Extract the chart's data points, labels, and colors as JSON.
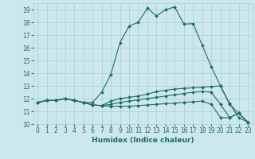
{
  "xlabel": "Humidex (Indice chaleur)",
  "ylabel": "",
  "xlim": [
    -0.5,
    23.5
  ],
  "ylim": [
    10,
    19.5
  ],
  "yticks": [
    10,
    11,
    12,
    13,
    14,
    15,
    16,
    17,
    18,
    19
  ],
  "xticks": [
    0,
    1,
    2,
    3,
    4,
    5,
    6,
    7,
    8,
    9,
    10,
    11,
    12,
    13,
    14,
    15,
    16,
    17,
    18,
    19,
    20,
    21,
    22,
    23
  ],
  "background_color": "#cde8ec",
  "grid_color": "#aacdd4",
  "line_color": "#1e6b6b",
  "lines": [
    {
      "x": [
        0,
        1,
        2,
        3,
        4,
        5,
        6,
        7,
        8,
        9,
        10,
        11,
        12,
        13,
        14,
        15,
        16,
        17,
        18,
        19,
        20,
        21,
        22,
        23
      ],
      "y": [
        11.7,
        11.85,
        11.85,
        12.0,
        11.85,
        11.7,
        11.7,
        12.5,
        13.9,
        16.4,
        17.7,
        18.0,
        19.1,
        18.5,
        19.0,
        19.2,
        17.85,
        17.9,
        16.2,
        14.5,
        13.0,
        11.6,
        10.5,
        10.15
      ]
    },
    {
      "x": [
        0,
        1,
        2,
        3,
        4,
        5,
        6,
        7,
        8,
        9,
        10,
        11,
        12,
        13,
        14,
        15,
        16,
        17,
        18,
        19,
        20,
        21,
        22,
        23
      ],
      "y": [
        11.7,
        11.85,
        11.85,
        12.0,
        11.85,
        11.7,
        11.5,
        11.45,
        11.8,
        12.0,
        12.1,
        12.2,
        12.35,
        12.55,
        12.65,
        12.75,
        12.8,
        12.85,
        12.9,
        12.95,
        13.0,
        11.55,
        10.85,
        10.15
      ]
    },
    {
      "x": [
        0,
        1,
        2,
        3,
        4,
        5,
        6,
        7,
        8,
        9,
        10,
        11,
        12,
        13,
        14,
        15,
        16,
        17,
        18,
        19,
        20,
        21,
        22,
        23
      ],
      "y": [
        11.7,
        11.85,
        11.85,
        12.0,
        11.85,
        11.7,
        11.5,
        11.45,
        11.55,
        11.7,
        11.8,
        11.9,
        12.0,
        12.1,
        12.2,
        12.3,
        12.4,
        12.5,
        12.55,
        12.5,
        11.55,
        10.5,
        10.85,
        10.15
      ]
    },
    {
      "x": [
        0,
        1,
        2,
        3,
        4,
        5,
        6,
        7,
        8,
        9,
        10,
        11,
        12,
        13,
        14,
        15,
        16,
        17,
        18,
        19,
        20,
        21,
        22,
        23
      ],
      "y": [
        11.7,
        11.85,
        11.85,
        12.0,
        11.85,
        11.7,
        11.5,
        11.45,
        11.4,
        11.4,
        11.4,
        11.45,
        11.5,
        11.55,
        11.6,
        11.65,
        11.7,
        11.75,
        11.8,
        11.55,
        10.5,
        10.5,
        10.85,
        10.15
      ]
    }
  ]
}
